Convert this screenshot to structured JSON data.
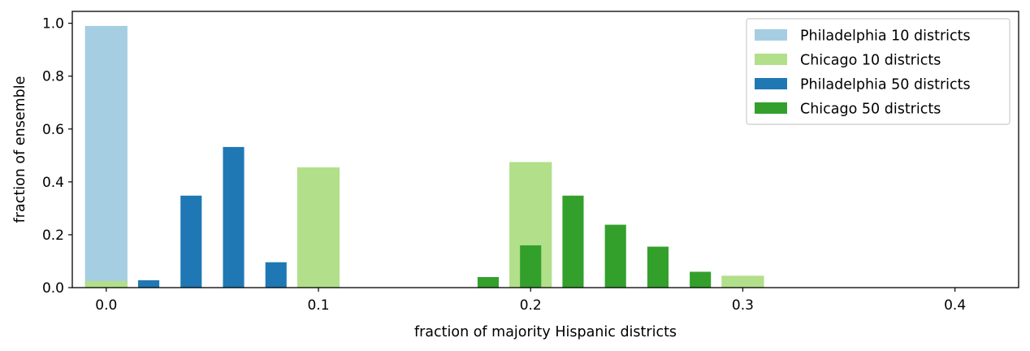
{
  "chart_data": {
    "type": "bar",
    "xlabel": "fraction of majority Hispanic districts",
    "ylabel": "fraction of ensemble",
    "xlim": [
      -0.016,
      0.43
    ],
    "ylim": [
      0,
      1.045
    ],
    "xticks": [
      0.0,
      0.1,
      0.2,
      0.3,
      0.4
    ],
    "xtick_labels": [
      "0.0",
      "0.1",
      "0.2",
      "0.3",
      "0.4"
    ],
    "yticks": [
      0.0,
      0.2,
      0.4,
      0.6,
      0.8,
      1.0
    ],
    "ytick_labels": [
      "0.0",
      "0.2",
      "0.4",
      "0.6",
      "0.8",
      "1.0"
    ],
    "grid": false,
    "legend_position": "top-right",
    "series": [
      {
        "name": "Philadelphia 10 districts",
        "color": "#a6cee3",
        "bar_width": 0.02,
        "x": [
          0.0
        ],
        "values": [
          0.99
        ]
      },
      {
        "name": "Chicago 10 districts",
        "color": "#b2df8a",
        "bar_width": 0.02,
        "x": [
          0.0,
          0.1,
          0.2,
          0.3
        ],
        "values": [
          0.025,
          0.455,
          0.475,
          0.045
        ]
      },
      {
        "name": "Philadelphia 50 districts",
        "color": "#1f78b4",
        "bar_width": 0.01,
        "x": [
          0.02,
          0.04,
          0.06,
          0.08
        ],
        "values": [
          0.028,
          0.348,
          0.532,
          0.096
        ]
      },
      {
        "name": "Chicago 50 districts",
        "color": "#33a02c",
        "bar_width": 0.01,
        "x": [
          0.18,
          0.2,
          0.22,
          0.24,
          0.26,
          0.28
        ],
        "values": [
          0.04,
          0.16,
          0.348,
          0.238,
          0.155,
          0.06
        ]
      }
    ]
  }
}
